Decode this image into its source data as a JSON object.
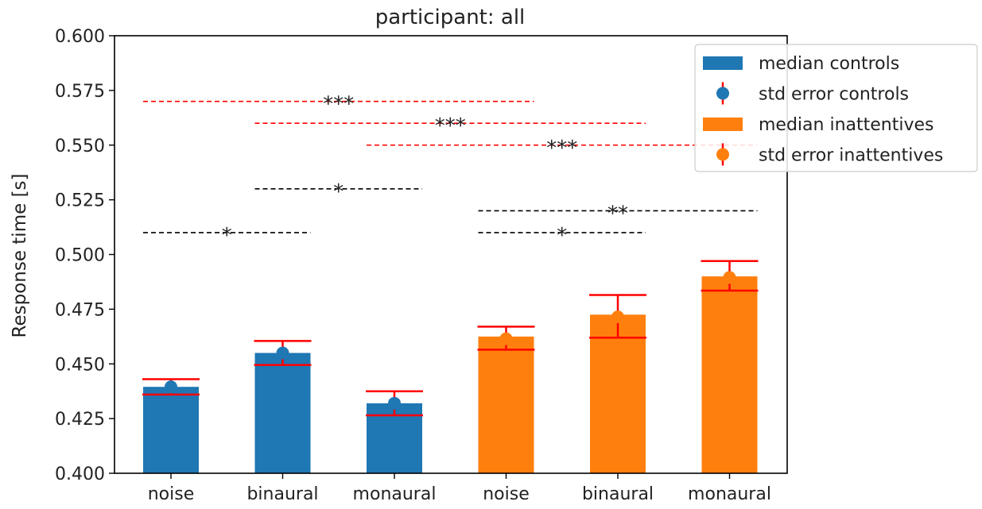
{
  "chart_data": {
    "type": "bar",
    "title": "participant: all",
    "xlabel": "",
    "ylabel": "Response time [s]",
    "ylim": [
      0.4,
      0.6
    ],
    "yticks": [
      "0.400",
      "0.425",
      "0.450",
      "0.475",
      "0.500",
      "0.525",
      "0.550",
      "0.575",
      "0.600"
    ],
    "categories": [
      "noise",
      "binaural",
      "monaural",
      "noise",
      "binaural",
      "monaural"
    ],
    "series": [
      {
        "name": "median controls",
        "color": "#1f77b4",
        "positions": [
          0,
          1,
          2
        ],
        "values": [
          0.4395,
          0.455,
          0.432
        ],
        "error_name": "std error controls",
        "error_center": [
          0.4395,
          0.455,
          0.432
        ],
        "error_low": [
          0.436,
          0.4495,
          0.4265
        ],
        "error_high": [
          0.443,
          0.4605,
          0.4375
        ]
      },
      {
        "name": "median inattentives",
        "color": "#ff7f0e",
        "positions": [
          3,
          4,
          5
        ],
        "values": [
          0.4625,
          0.4725,
          0.49
        ],
        "error_name": "std error inattentives",
        "error_center": [
          0.4615,
          0.4715,
          0.4895
        ],
        "error_low": [
          0.4565,
          0.462,
          0.4835
        ],
        "error_high": [
          0.467,
          0.4815,
          0.497
        ]
      }
    ],
    "error_color": "#ff0000",
    "significance": [
      {
        "from": 0,
        "to": 3,
        "y": 0.57,
        "label": "***",
        "color": "#ff0000"
      },
      {
        "from": 1,
        "to": 4,
        "y": 0.56,
        "label": "***",
        "color": "#ff0000"
      },
      {
        "from": 2,
        "to": 5,
        "y": 0.55,
        "label": "***",
        "color": "#ff0000"
      },
      {
        "from": 1,
        "to": 2,
        "y": 0.53,
        "label": "*",
        "color": "#000000"
      },
      {
        "from": 3,
        "to": 5,
        "y": 0.52,
        "label": "**",
        "color": "#000000"
      },
      {
        "from": 0,
        "to": 1,
        "y": 0.51,
        "label": "*",
        "color": "#000000"
      },
      {
        "from": 3,
        "to": 4,
        "y": 0.51,
        "label": "*",
        "color": "#000000"
      }
    ],
    "legend": {
      "placement": "top-right",
      "entries": [
        {
          "label": "median controls",
          "kind": "bar",
          "color": "#1f77b4"
        },
        {
          "label": "std error controls",
          "kind": "errorbar",
          "color": "#1f77b4",
          "bar_color": "#ff0000"
        },
        {
          "label": "median inattentives",
          "kind": "bar",
          "color": "#ff7f0e"
        },
        {
          "label": "std error inattentives",
          "kind": "errorbar",
          "color": "#ff7f0e",
          "bar_color": "#ff0000"
        }
      ]
    },
    "grid": false
  }
}
